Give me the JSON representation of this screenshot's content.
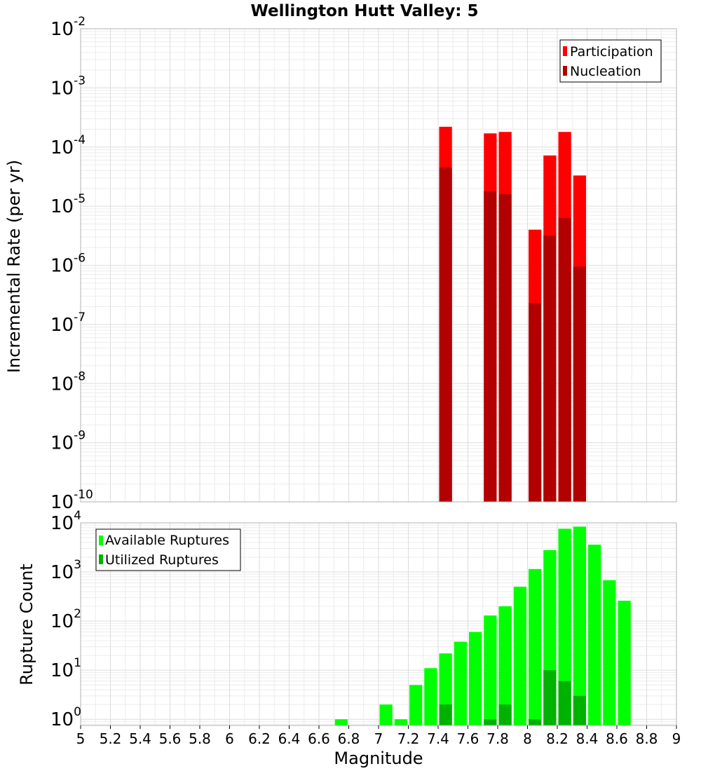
{
  "chart_data": [
    {
      "type": "bar",
      "title": "Wellington Hutt Valley: 5",
      "xlabel": "",
      "ylabel": "Incremental Rate (per yr)",
      "yscale": "log",
      "ylim": [
        1e-10,
        0.01
      ],
      "xlim": [
        5,
        9
      ],
      "bin_width": 0.1,
      "grid": true,
      "legend_position": "top-right",
      "overlay": true,
      "colors": {
        "Participation": "#ff0000",
        "Nucleation": "#b20000"
      },
      "series": [
        {
          "name": "Participation",
          "x": [
            7.45,
            7.75,
            7.85,
            8.05,
            8.15,
            8.25,
            8.35
          ],
          "values": [
            0.00022,
            0.00017,
            0.00018,
            4e-06,
            7.2e-05,
            0.00018,
            3.3e-05
          ]
        },
        {
          "name": "Nucleation",
          "x": [
            7.45,
            7.75,
            7.85,
            8.05,
            8.15,
            8.25,
            8.35
          ],
          "values": [
            4.5e-05,
            1.8e-05,
            1.6e-05,
            2.3e-07,
            3.2e-06,
            6.3e-06,
            9.5e-07
          ]
        }
      ]
    },
    {
      "type": "bar",
      "title": "",
      "xlabel": "Magnitude",
      "ylabel": "Rupture Count",
      "yscale": "log",
      "ylim": [
        0.75,
        10000
      ],
      "xlim": [
        5,
        9
      ],
      "bin_width": 0.1,
      "grid": true,
      "legend_position": "top-left",
      "overlay": true,
      "colors": {
        "Available Ruptures": "#00ff00",
        "Utilized Ruptures": "#00b200"
      },
      "x_ticks": [
        "5",
        "5.2",
        "5.4",
        "5.6",
        "5.8",
        "6",
        "6.2",
        "6.4",
        "6.6",
        "6.8",
        "7",
        "7.2",
        "7.4",
        "7.6",
        "7.8",
        "8",
        "8.2",
        "8.4",
        "8.6",
        "8.8",
        "9"
      ],
      "series": [
        {
          "name": "Available Ruptures",
          "x": [
            6.75,
            7.05,
            7.15,
            7.25,
            7.35,
            7.45,
            7.55,
            7.65,
            7.75,
            7.85,
            7.95,
            8.05,
            8.15,
            8.25,
            8.35,
            8.45,
            8.55,
            8.65
          ],
          "values": [
            1,
            2,
            1,
            5,
            11,
            22,
            38,
            60,
            130,
            200,
            500,
            1150,
            2800,
            7600,
            8400,
            3600,
            680,
            260
          ]
        },
        {
          "name": "Utilized Ruptures",
          "x": [
            7.45,
            7.75,
            7.85,
            8.05,
            8.15,
            8.25,
            8.35
          ],
          "values": [
            2,
            1,
            2,
            1,
            10,
            6,
            3
          ]
        }
      ]
    }
  ]
}
